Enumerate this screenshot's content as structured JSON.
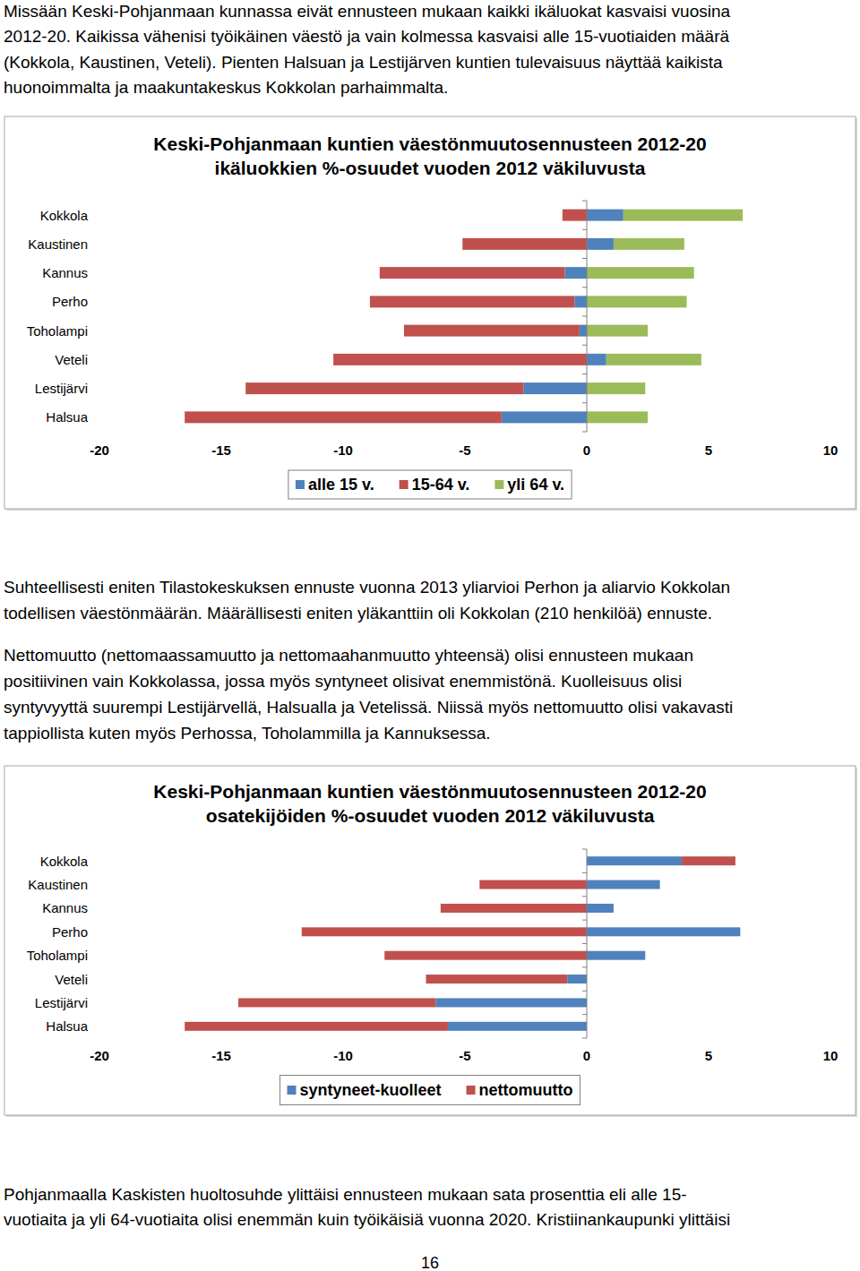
{
  "text_top": [
    "Missään Keski-Pohjanmaan kunnassa eivät ennusteen mukaan kaikki ikäluokat kasvaisi vuosina",
    "2012-20. Kaikissa vähenisi työikäinen väestö ja vain kolmessa kasvaisi alle 15-vuotiaiden määrä",
    "(Kokkola, Kaustinen, Veteli). Pienten Halsuan ja Lestijärven kuntien tulevaisuus näyttää kaikista",
    "huonoimmalta ja maakuntakeskus Kokkolan parhaimmalta."
  ],
  "chart_data": [
    {
      "type": "bar",
      "title": "Keski-Pohjanmaan kuntien väestönmuutosennusteen 2012-20",
      "subtitle": "ikäluokkien %-osuudet vuoden 2012 väkiluvusta",
      "orientation": "horizontal",
      "stacked": true,
      "legend": "bottom",
      "categories": [
        "Kokkola",
        "Kaustinen",
        "Kannus",
        "Perho",
        "Toholampi",
        "Veteli",
        "Lestijärvi",
        "Halsua"
      ],
      "xlim": [
        -20,
        10
      ],
      "xticks": [
        -20,
        -15,
        -10,
        -5,
        0,
        5,
        10
      ],
      "series": [
        {
          "name": "alle 15 v.",
          "color": "#4f81bd",
          "values": [
            1.5,
            1.1,
            -0.9,
            -0.5,
            -0.3,
            0.8,
            -2.6,
            -3.5
          ]
        },
        {
          "name": "15-64 v.",
          "color": "#c0504d",
          "values": [
            -1.0,
            -5.1,
            -7.6,
            -8.4,
            -7.2,
            -10.4,
            -11.4,
            -13.0
          ]
        },
        {
          "name": "yli 64 v.",
          "color": "#9bbb59",
          "values": [
            4.9,
            2.9,
            4.4,
            4.1,
            2.5,
            3.9,
            2.4,
            2.5
          ]
        }
      ]
    },
    {
      "type": "bar",
      "title": "Keski-Pohjanmaan kuntien väestönmuutosennusteen 2012-20",
      "subtitle": "osatekijöiden %-osuudet vuoden 2012 väkiluvusta",
      "orientation": "horizontal",
      "stacked": true,
      "legend": "bottom",
      "categories": [
        "Kokkola",
        "Kaustinen",
        "Kannus",
        "Perho",
        "Toholampi",
        "Veteli",
        "Lestijärvi",
        "Halsua"
      ],
      "xlim": [
        -20,
        10
      ],
      "xticks": [
        -20,
        -15,
        -10,
        -5,
        0,
        5,
        10
      ],
      "series": [
        {
          "name": "syntyneet-kuolleet",
          "color": "#4f81bd",
          "values": [
            3.9,
            3.0,
            1.1,
            6.3,
            2.4,
            -0.8,
            -6.2,
            -5.7
          ]
        },
        {
          "name": "nettomuutto",
          "color": "#c0504d",
          "values": [
            2.2,
            -4.4,
            -6.0,
            -11.7,
            -8.3,
            -5.8,
            -8.1,
            -10.8
          ]
        }
      ]
    }
  ],
  "text_middle": [
    [
      "Suhteellisesti eniten Tilastokeskuksen ennuste vuonna 2013 yliarvioi Perhon ja aliarvio Kokkolan",
      "todellisen väestönmäärän. Määrällisesti eniten yläkanttiin oli Kokkolan (210 henkilöä) ennuste."
    ],
    [
      "Nettomuutto (nettomaassamuutto ja nettomaahanmuutto yhteensä) olisi ennusteen mukaan",
      "positiivinen vain Kokkolassa, jossa myös syntyneet olisivat enemmistönä. Kuolleisuus olisi",
      "syntyvyyttä suurempi Lestijärvellä, Halsualla ja Vetelissä. Niissä myös nettomuutto olisi vakavasti",
      "tappiollista kuten myös Perhossa, Toholammilla ja Kannuksessa."
    ]
  ],
  "text_bottom": [
    "Pohjanmaalla Kaskisten huoltosuhde ylittäisi ennusteen mukaan sata prosenttia eli alle 15-",
    "vuotiaita ja yli 64-vuotiaita olisi enemmän kuin työikäisiä vuonna 2020. Kristiinankaupunki ylittäisi"
  ],
  "page_number": "16"
}
